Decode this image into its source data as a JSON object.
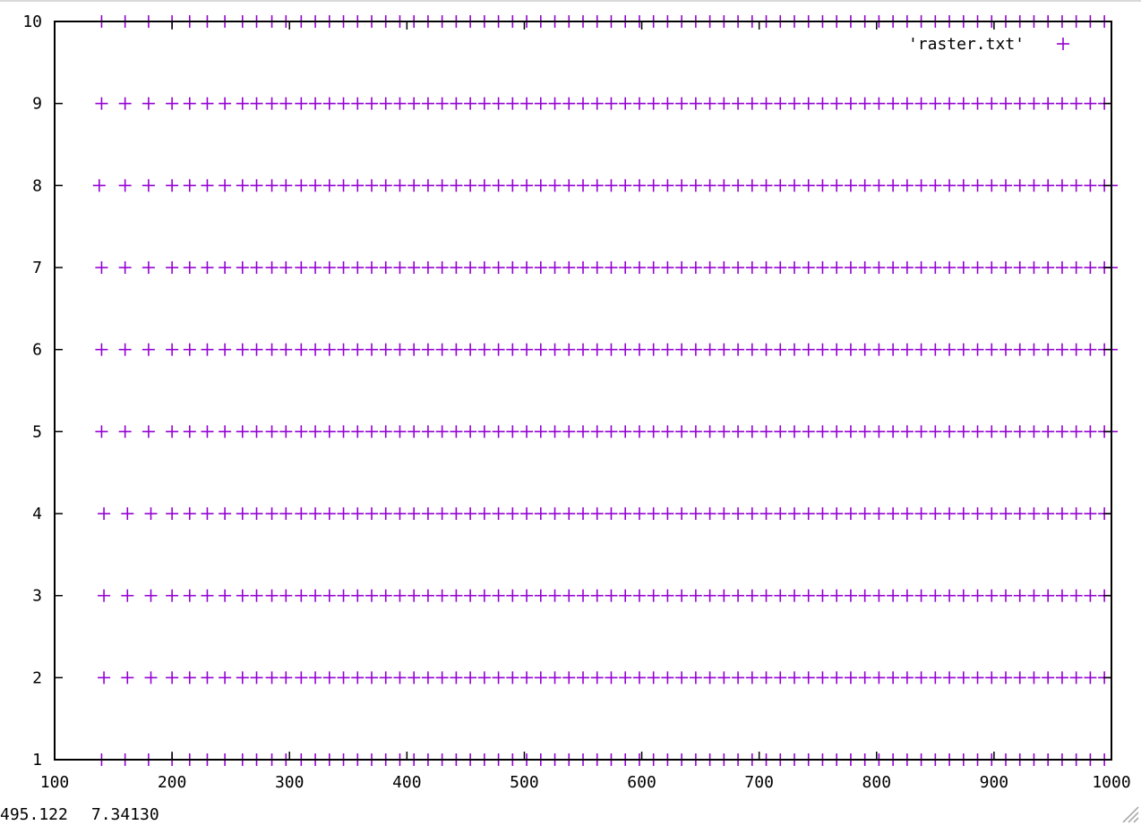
{
  "window": {
    "status": {
      "cursor_x": "495.122",
      "cursor_y": "7.34130"
    }
  },
  "colors": {
    "series": "#9400d3",
    "axis": "#000000",
    "background": "#ffffff"
  },
  "chart_data": {
    "type": "scatter",
    "title": "",
    "xlabel": "",
    "ylabel": "",
    "xlim": [
      100,
      1000
    ],
    "ylim": [
      1,
      10
    ],
    "x_ticks": [
      100,
      200,
      300,
      400,
      500,
      600,
      700,
      800,
      900,
      1000
    ],
    "y_ticks": [
      1,
      2,
      3,
      4,
      5,
      6,
      7,
      8,
      9,
      10
    ],
    "x_tick_labels": [
      "100",
      "200",
      "300",
      "400",
      "500",
      "600",
      "700",
      "800",
      "900",
      "1000"
    ],
    "y_tick_labels": [
      "1",
      "2",
      "3",
      "4",
      "5",
      "6",
      "7",
      "8",
      "9",
      "10"
    ],
    "grid": false,
    "legend": {
      "position": "top-right",
      "entries": [
        "'raster.txt'"
      ]
    },
    "marker": "plus",
    "series": [
      {
        "name": "'raster.txt'",
        "rows": [
          {
            "y": 10,
            "x": [
              140,
              160,
              180,
              200,
              215,
              230,
              245,
              260,
              272,
              285,
              297,
              310,
              322,
              334,
              346,
              358,
              370,
              382,
              394,
              406,
              418,
              430,
              442,
              454,
              466,
              478,
              490,
              502,
              514,
              526,
              538,
              550,
              562,
              574,
              586,
              598,
              610,
              622,
              634,
              646,
              658,
              670,
              682,
              694,
              706,
              718,
              730,
              742,
              754,
              766,
              778,
              790,
              802,
              814,
              826,
              838,
              850,
              862,
              874,
              886,
              898,
              910,
              922,
              934,
              946,
              958,
              970,
              982,
              994
            ]
          },
          {
            "y": 9,
            "x": [
              140,
              160,
              180,
              200,
              215,
              230,
              245,
              260,
              272,
              285,
              297,
              310,
              322,
              334,
              346,
              358,
              370,
              382,
              394,
              406,
              418,
              430,
              442,
              454,
              466,
              478,
              490,
              502,
              514,
              526,
              538,
              550,
              562,
              574,
              586,
              598,
              610,
              622,
              634,
              646,
              658,
              670,
              682,
              694,
              706,
              718,
              730,
              742,
              754,
              766,
              778,
              790,
              802,
              814,
              826,
              838,
              850,
              862,
              874,
              886,
              898,
              910,
              922,
              934,
              946,
              958,
              970,
              982,
              994
            ]
          },
          {
            "y": 8,
            "x": [
              138,
              160,
              180,
              200,
              215,
              230,
              245,
              260,
              272,
              285,
              297,
              310,
              322,
              334,
              346,
              358,
              370,
              382,
              394,
              406,
              418,
              430,
              442,
              454,
              466,
              478,
              490,
              502,
              514,
              526,
              538,
              550,
              562,
              574,
              586,
              598,
              610,
              622,
              634,
              646,
              658,
              670,
              682,
              694,
              706,
              718,
              730,
              742,
              754,
              766,
              778,
              790,
              802,
              814,
              826,
              838,
              850,
              862,
              874,
              886,
              898,
              910,
              922,
              934,
              946,
              958,
              970,
              982,
              994,
              1000
            ]
          },
          {
            "y": 7,
            "x": [
              140,
              160,
              180,
              200,
              215,
              230,
              245,
              260,
              272,
              285,
              297,
              310,
              322,
              334,
              346,
              358,
              370,
              382,
              394,
              406,
              418,
              430,
              442,
              454,
              466,
              478,
              490,
              502,
              514,
              526,
              538,
              550,
              562,
              574,
              586,
              598,
              610,
              622,
              634,
              646,
              658,
              670,
              682,
              694,
              706,
              718,
              730,
              742,
              754,
              766,
              778,
              790,
              802,
              814,
              826,
              838,
              850,
              862,
              874,
              886,
              898,
              910,
              922,
              934,
              946,
              958,
              970,
              982,
              994,
              1000
            ]
          },
          {
            "y": 6,
            "x": [
              140,
              160,
              180,
              200,
              215,
              230,
              245,
              260,
              272,
              285,
              297,
              310,
              322,
              334,
              346,
              358,
              370,
              382,
              394,
              406,
              418,
              430,
              442,
              454,
              466,
              478,
              490,
              502,
              514,
              526,
              538,
              550,
              562,
              574,
              586,
              598,
              610,
              622,
              634,
              646,
              658,
              670,
              682,
              694,
              706,
              718,
              730,
              742,
              754,
              766,
              778,
              790,
              802,
              814,
              826,
              838,
              850,
              862,
              874,
              886,
              898,
              910,
              922,
              934,
              946,
              958,
              970,
              982,
              994,
              1000
            ]
          },
          {
            "y": 5,
            "x": [
              140,
              160,
              180,
              200,
              215,
              230,
              245,
              260,
              272,
              285,
              297,
              310,
              322,
              334,
              346,
              358,
              370,
              382,
              394,
              406,
              418,
              430,
              442,
              454,
              466,
              478,
              490,
              502,
              514,
              526,
              538,
              550,
              562,
              574,
              586,
              598,
              610,
              622,
              634,
              646,
              658,
              670,
              682,
              694,
              706,
              718,
              730,
              742,
              754,
              766,
              778,
              790,
              802,
              814,
              826,
              838,
              850,
              862,
              874,
              886,
              898,
              910,
              922,
              934,
              946,
              958,
              970,
              982,
              994,
              1000
            ]
          },
          {
            "y": 4,
            "x": [
              142,
              162,
              182,
              200,
              215,
              230,
              245,
              260,
              272,
              285,
              297,
              310,
              322,
              334,
              346,
              358,
              370,
              382,
              394,
              406,
              418,
              430,
              442,
              454,
              466,
              478,
              490,
              502,
              514,
              526,
              538,
              550,
              562,
              574,
              586,
              598,
              610,
              622,
              634,
              646,
              658,
              670,
              682,
              694,
              706,
              718,
              730,
              742,
              754,
              766,
              778,
              790,
              802,
              814,
              826,
              838,
              850,
              862,
              874,
              886,
              898,
              910,
              922,
              934,
              946,
              958,
              970,
              982,
              994
            ]
          },
          {
            "y": 3,
            "x": [
              142,
              162,
              182,
              200,
              215,
              230,
              245,
              260,
              272,
              285,
              297,
              310,
              322,
              334,
              346,
              358,
              370,
              382,
              394,
              406,
              418,
              430,
              442,
              454,
              466,
              478,
              490,
              502,
              514,
              526,
              538,
              550,
              562,
              574,
              586,
              598,
              610,
              622,
              634,
              646,
              658,
              670,
              682,
              694,
              706,
              718,
              730,
              742,
              754,
              766,
              778,
              790,
              802,
              814,
              826,
              838,
              850,
              862,
              874,
              886,
              898,
              910,
              922,
              934,
              946,
              958,
              970,
              982,
              994
            ]
          },
          {
            "y": 2,
            "x": [
              142,
              162,
              182,
              200,
              215,
              230,
              245,
              260,
              272,
              285,
              297,
              310,
              322,
              334,
              346,
              358,
              370,
              382,
              394,
              406,
              418,
              430,
              442,
              454,
              466,
              478,
              490,
              502,
              514,
              526,
              538,
              550,
              562,
              574,
              586,
              598,
              610,
              622,
              634,
              646,
              658,
              670,
              682,
              694,
              706,
              718,
              730,
              742,
              754,
              766,
              778,
              790,
              802,
              814,
              826,
              838,
              850,
              862,
              874,
              886,
              898,
              910,
              922,
              934,
              946,
              958,
              970,
              982,
              994
            ]
          },
          {
            "y": 1,
            "x": [
              140,
              160,
              180,
              200,
              215,
              230,
              245,
              260,
              272,
              285,
              297,
              310,
              322,
              334,
              346,
              358,
              370,
              382,
              394,
              406,
              418,
              430,
              442,
              454,
              466,
              478,
              490,
              502,
              514,
              526,
              538,
              550,
              562,
              574,
              586,
              598,
              610,
              622,
              634,
              646,
              658,
              670,
              682,
              694,
              706,
              718,
              730,
              742,
              754,
              766,
              778,
              790,
              802,
              814,
              826,
              838,
              850,
              862,
              874,
              886,
              898,
              910,
              922,
              934,
              946,
              958,
              970,
              982,
              994
            ]
          }
        ]
      }
    ]
  }
}
